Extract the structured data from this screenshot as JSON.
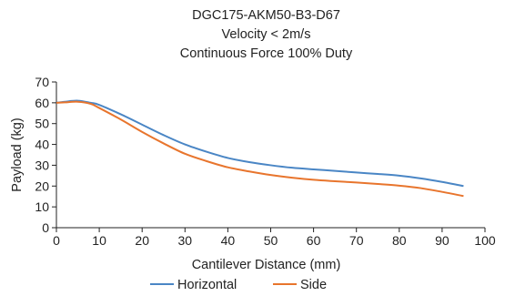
{
  "chart_data": {
    "type": "line",
    "title_lines": [
      "DGC175-AKM50-B3-D67",
      "Velocity < 2m/s",
      "Continuous Force 100% Duty"
    ],
    "xlabel": "Cantilever Distance (mm)",
    "ylabel": "Payload (kg)",
    "xlim": [
      0,
      100
    ],
    "ylim": [
      0,
      70
    ],
    "xticks": [
      0,
      10,
      20,
      30,
      40,
      50,
      60,
      70,
      80,
      90,
      100
    ],
    "yticks": [
      0,
      10,
      20,
      30,
      40,
      50,
      60,
      70
    ],
    "grid": false,
    "legend_position": "bottom-center",
    "series": [
      {
        "name": "Horizontal",
        "color": "#4a86c5",
        "x": [
          0,
          2,
          5,
          8,
          10,
          15,
          20,
          25,
          30,
          35,
          40,
          45,
          50,
          55,
          60,
          65,
          70,
          75,
          80,
          85,
          90,
          95
        ],
        "y": [
          60,
          60.5,
          61,
          60,
          59,
          54.5,
          49.5,
          44.5,
          40,
          36.5,
          33.5,
          31.5,
          30,
          28.8,
          28,
          27.3,
          26.5,
          25.8,
          25,
          23.7,
          22,
          20
        ]
      },
      {
        "name": "Side",
        "color": "#e8752d",
        "x": [
          0,
          2,
          5,
          8,
          10,
          15,
          20,
          25,
          30,
          35,
          40,
          45,
          50,
          55,
          60,
          65,
          70,
          75,
          80,
          85,
          90,
          95
        ],
        "y": [
          60,
          60.2,
          60.5,
          59.5,
          57.5,
          52,
          46,
          40.5,
          35.5,
          32,
          29,
          27,
          25.3,
          24,
          23,
          22.3,
          21.7,
          21,
          20.2,
          19,
          17.2,
          15.2
        ]
      }
    ]
  }
}
